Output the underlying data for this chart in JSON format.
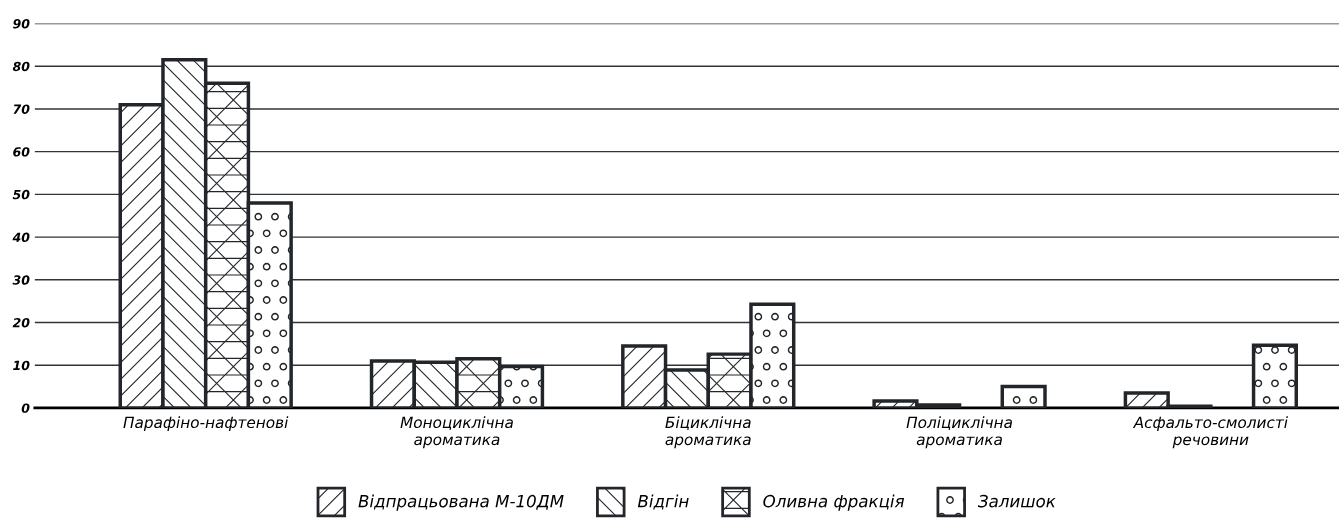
{
  "chart_data": {
    "type": "bar",
    "categories": [
      "Парафіно-нафтенові",
      "Моноциклічна\nароматика",
      "Біциклічна\nароматика",
      "Поліциклічна\nароматика",
      "Асфальто-смолисті\nречовини"
    ],
    "series": [
      {
        "name": "Відпрацьована М-10ДМ",
        "color": "#22262a",
        "values": [
          71,
          11,
          14.5,
          1.6,
          3.5
        ]
      },
      {
        "name": "Відгін",
        "color": "#22262a",
        "values": [
          81.5,
          10.7,
          8.9,
          0.7,
          0.4
        ]
      },
      {
        "name": "Оливна фракція",
        "color": "#22262a",
        "values": [
          76,
          11.5,
          12.6,
          null,
          null
        ]
      },
      {
        "name": "Залишок",
        "color": "#22262a",
        "values": [
          48,
          9.7,
          24.3,
          5,
          14.7
        ]
      }
    ],
    "ylim": [
      0,
      90
    ],
    "yticks": [
      0,
      10,
      20,
      30,
      40,
      50,
      60,
      70,
      80,
      90
    ],
    "grid": "y",
    "legend": "bottom"
  }
}
